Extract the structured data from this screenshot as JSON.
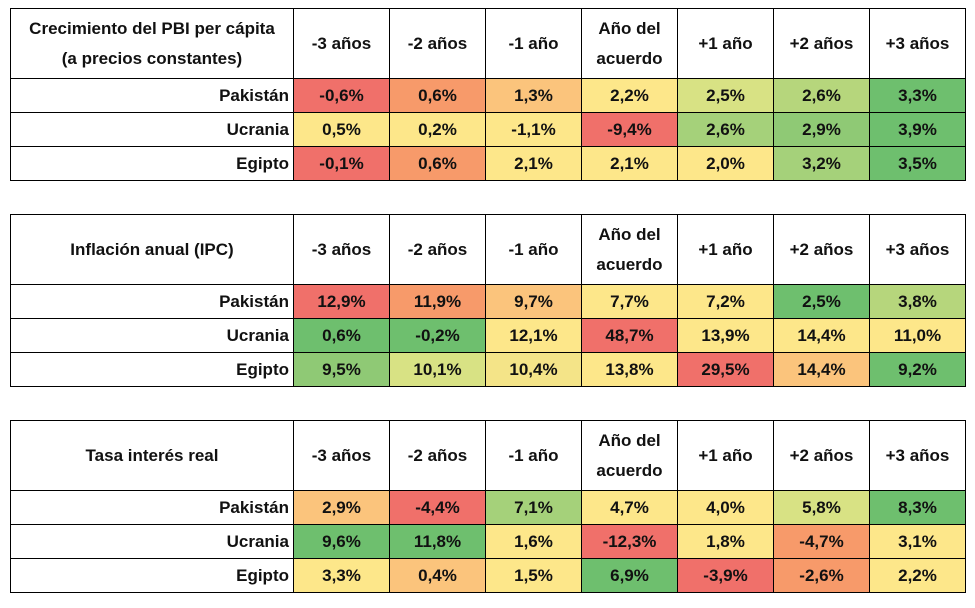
{
  "columns": [
    "-3 años",
    "-2 años",
    "-1 año",
    "Año del\nacuerdo",
    "+1 año",
    "+2 años",
    "+3 años"
  ],
  "tables": [
    {
      "title": "Crecimiento del PBI per cápita\n(a precios constantes)",
      "rows": [
        {
          "country": "Pakistán",
          "values": [
            "-0,6%",
            "0,6%",
            "1,3%",
            "2,2%",
            "2,5%",
            "2,6%",
            "3,3%"
          ],
          "colors": [
            "#f0706a",
            "#f79a6a",
            "#fbc47c",
            "#fde78a",
            "#d8e284",
            "#b6d67c",
            "#6ebf6e"
          ]
        },
        {
          "country": "Ucrania",
          "values": [
            "0,5%",
            "0,2%",
            "-1,1%",
            "-9,4%",
            "2,6%",
            "2,9%",
            "3,9%"
          ],
          "colors": [
            "#fde78a",
            "#fde78a",
            "#fde78a",
            "#f0706a",
            "#a5d17a",
            "#8fc975",
            "#6ebf6e"
          ]
        },
        {
          "country": "Egipto",
          "values": [
            "-0,1%",
            "0,6%",
            "2,1%",
            "2,1%",
            "2,0%",
            "3,2%",
            "3,5%"
          ],
          "colors": [
            "#f0706a",
            "#f79a6a",
            "#fde78a",
            "#fde78a",
            "#fde78a",
            "#a5d17a",
            "#6ebf6e"
          ]
        }
      ]
    },
    {
      "title": "Inflación anual (IPC)",
      "rows": [
        {
          "country": "Pakistán",
          "values": [
            "12,9%",
            "11,9%",
            "9,7%",
            "7,7%",
            "7,2%",
            "2,5%",
            "3,8%"
          ],
          "colors": [
            "#f0706a",
            "#f79a6a",
            "#fbc47c",
            "#fde78a",
            "#fde78a",
            "#6ebf6e",
            "#b6d67c"
          ]
        },
        {
          "country": "Ucrania",
          "values": [
            "0,6%",
            "-0,2%",
            "12,1%",
            "48,7%",
            "13,9%",
            "14,4%",
            "11,0%"
          ],
          "colors": [
            "#6ebf6e",
            "#6ebf6e",
            "#fde78a",
            "#f0706a",
            "#fde78a",
            "#fde78a",
            "#fde78a"
          ]
        },
        {
          "country": "Egipto",
          "values": [
            "9,5%",
            "10,1%",
            "10,4%",
            "13,8%",
            "29,5%",
            "14,4%",
            "9,2%"
          ],
          "colors": [
            "#8fc975",
            "#d8e284",
            "#f4e488",
            "#fde78a",
            "#f0706a",
            "#fbc47c",
            "#6ebf6e"
          ]
        }
      ]
    },
    {
      "title": "Tasa interés real",
      "rows": [
        {
          "country": "Pakistán",
          "values": [
            "2,9%",
            "-4,4%",
            "7,1%",
            "4,7%",
            "4,0%",
            "5,8%",
            "8,3%"
          ],
          "colors": [
            "#fbc47c",
            "#f0706a",
            "#a5d17a",
            "#fde78a",
            "#fde78a",
            "#d8e284",
            "#6ebf6e"
          ]
        },
        {
          "country": "Ucrania",
          "values": [
            "9,6%",
            "11,8%",
            "1,6%",
            "-12,3%",
            "1,8%",
            "-4,7%",
            "3,1%"
          ],
          "colors": [
            "#6ebf6e",
            "#6ebf6e",
            "#fde78a",
            "#f0706a",
            "#fde78a",
            "#f79a6a",
            "#fde78a"
          ]
        },
        {
          "country": "Egipto",
          "values": [
            "3,3%",
            "0,4%",
            "1,5%",
            "6,9%",
            "-3,9%",
            "-2,6%",
            "2,2%"
          ],
          "colors": [
            "#fde78a",
            "#fbc47c",
            "#fde78a",
            "#6ebf6e",
            "#f0706a",
            "#f79a6a",
            "#fde78a"
          ]
        }
      ]
    }
  ]
}
